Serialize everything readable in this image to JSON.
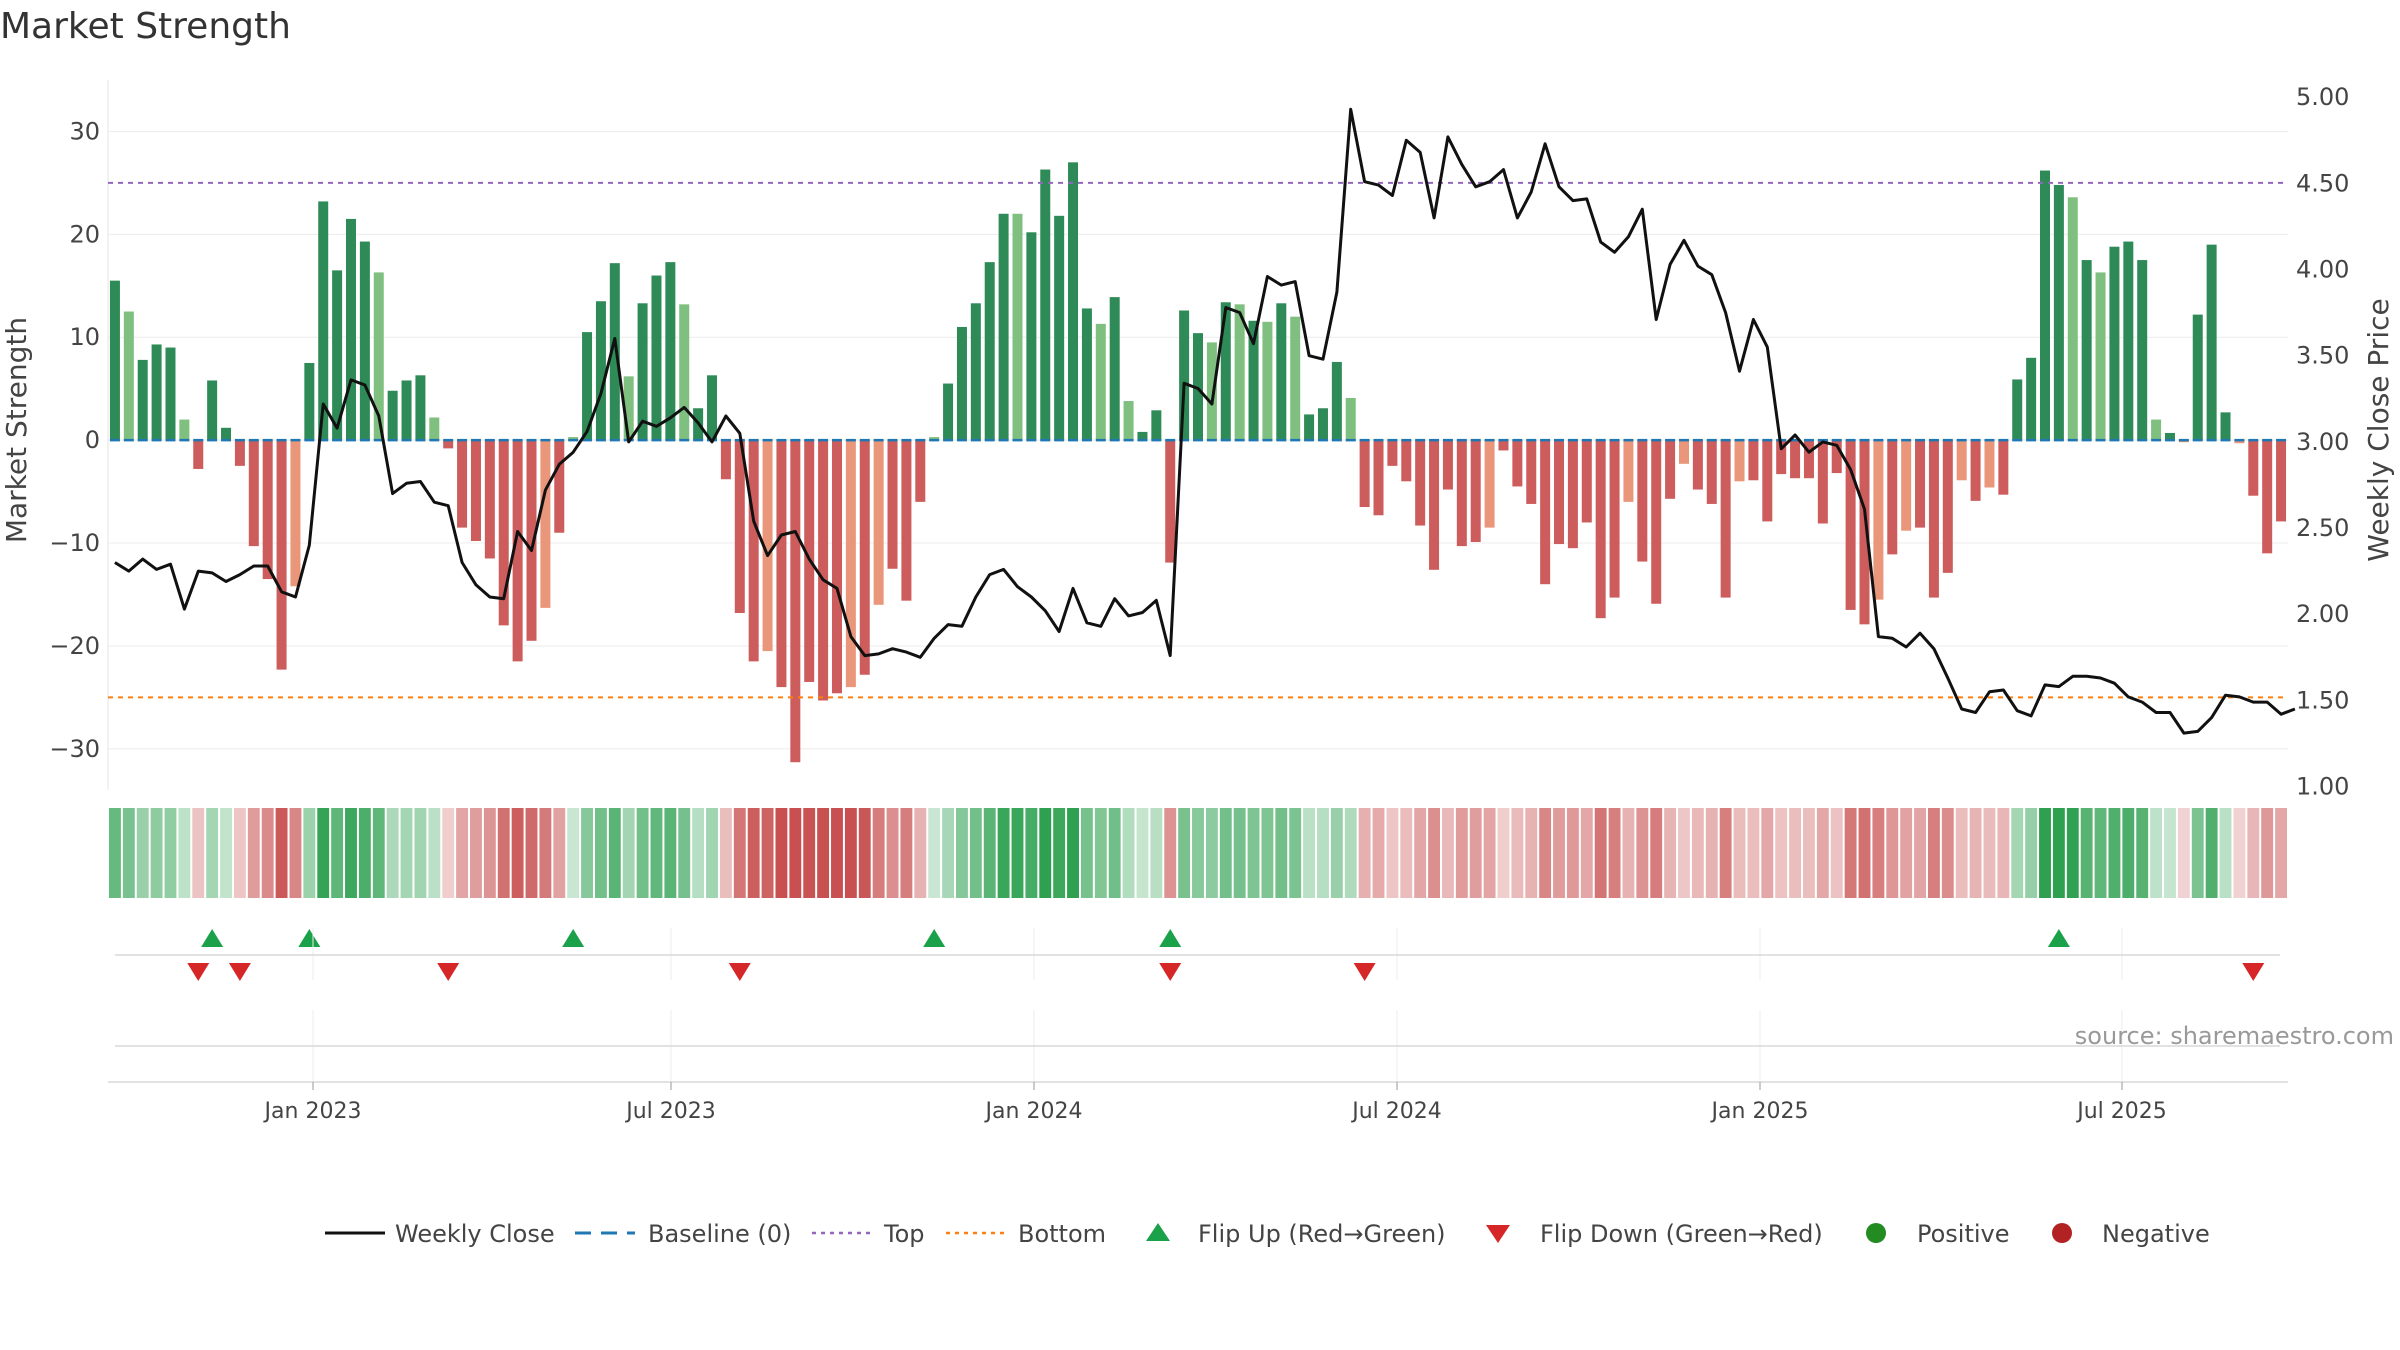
{
  "chart_data": {
    "type": "bar+line",
    "title": "Market Strength",
    "left_axis": {
      "label": "Market Strength",
      "ticks": [
        30,
        20,
        10,
        0,
        -10,
        -20,
        -30
      ],
      "range": [
        -34,
        35
      ]
    },
    "right_axis": {
      "label": "Weekly Close Price",
      "ticks": [
        "5.00",
        "4.50",
        "4.00",
        "3.50",
        "3.00",
        "2.50",
        "2.00",
        "1.50",
        "1.00"
      ],
      "range": [
        0.98,
        5.1
      ]
    },
    "x_ticks": [
      "Jan 2023",
      "Jul 2023",
      "Jan 2024",
      "Jul 2024",
      "Jan 2025",
      "Jul 2025"
    ],
    "top_threshold": 25,
    "bottom_threshold": -25,
    "strength": [
      15.5,
      12.5,
      7.8,
      9.3,
      9.0,
      2.0,
      -2.8,
      5.8,
      1.2,
      -2.5,
      -10.3,
      -13.5,
      -22.3,
      -14.2,
      7.5,
      23.2,
      16.5,
      21.5,
      19.3,
      16.3,
      4.8,
      5.8,
      6.3,
      2.2,
      -0.8,
      -8.5,
      -9.8,
      -11.5,
      -18.0,
      -21.5,
      -19.5,
      -16.3,
      -9.0,
      0.3,
      10.5,
      13.5,
      17.2,
      6.2,
      13.3,
      16.0,
      17.3,
      13.2,
      3.1,
      6.3,
      -3.8,
      -16.8,
      -21.5,
      -20.5,
      -24.0,
      -31.3,
      -23.5,
      -25.3,
      -24.6,
      -24.0,
      -22.8,
      -16.0,
      -12.5,
      -15.6,
      -6.0,
      0.3,
      5.5,
      11.0,
      13.3,
      17.3,
      22.0,
      22.0,
      20.2,
      26.3,
      21.8,
      27.0,
      12.8,
      11.3,
      13.9,
      3.8,
      0.8,
      2.9,
      -11.9,
      12.6,
      10.4,
      9.5,
      13.4,
      13.2,
      11.6,
      11.5,
      13.3,
      12.0,
      2.5,
      3.1,
      7.6,
      4.1,
      -6.5,
      -7.3,
      -2.5,
      -4.0,
      -8.3,
      -12.6,
      -4.8,
      -10.3,
      -9.9,
      -8.5,
      -1.0,
      -4.5,
      -6.2,
      -14.0,
      -10.1,
      -10.5,
      -8.0,
      -17.3,
      -15.3,
      -6.0,
      -11.8,
      -15.9,
      -5.7,
      -2.3,
      -4.8,
      -6.2,
      -15.3,
      -4.0,
      -3.9,
      -7.9,
      -3.3,
      -3.7,
      -3.7,
      -8.1,
      -3.2,
      -16.5,
      -17.9,
      -15.5,
      -11.1,
      -8.8,
      -8.5,
      -15.3,
      -12.9,
      -3.9,
      -5.9,
      -4.6,
      -5.3,
      5.9,
      8.0,
      26.2,
      24.8,
      23.6,
      17.5,
      16.3,
      18.8,
      19.3,
      17.5,
      2.0,
      0.7,
      -0.2,
      12.2,
      19.0,
      2.7,
      -0.3,
      -5.4,
      -11.0,
      -7.9
    ],
    "weekly_close": [
      2.3,
      2.25,
      2.32,
      2.26,
      2.29,
      2.03,
      2.25,
      2.24,
      2.19,
      2.23,
      2.28,
      2.28,
      2.13,
      2.1,
      2.4,
      3.22,
      3.08,
      3.36,
      3.33,
      3.15,
      2.7,
      2.76,
      2.77,
      2.65,
      2.63,
      2.3,
      2.17,
      2.1,
      2.09,
      2.48,
      2.37,
      2.72,
      2.87,
      2.94,
      3.06,
      3.28,
      3.6,
      3.0,
      3.12,
      3.09,
      3.14,
      3.2,
      3.11,
      3.0,
      3.15,
      3.05,
      2.54,
      2.34,
      2.46,
      2.48,
      2.32,
      2.2,
      2.15,
      1.87,
      1.76,
      1.77,
      1.8,
      1.78,
      1.75,
      1.86,
      1.94,
      1.93,
      2.1,
      2.23,
      2.26,
      2.16,
      2.1,
      2.02,
      1.9,
      2.15,
      1.95,
      1.93,
      2.09,
      1.99,
      2.01,
      2.08,
      1.76,
      3.34,
      3.31,
      3.22,
      3.78,
      3.75,
      3.57,
      3.96,
      3.91,
      3.93,
      3.5,
      3.48,
      3.87,
      4.93,
      4.51,
      4.49,
      4.43,
      4.75,
      4.68,
      4.3,
      4.77,
      4.61,
      4.48,
      4.51,
      4.58,
      4.3,
      4.45,
      4.73,
      4.48,
      4.4,
      4.41,
      4.16,
      4.1,
      4.19,
      4.35,
      3.71,
      4.03,
      4.17,
      4.02,
      3.97,
      3.75,
      3.41,
      3.71,
      3.55,
      2.96,
      3.04,
      2.94,
      3.0,
      2.98,
      2.84,
      2.61,
      1.87,
      1.86,
      1.81,
      1.89,
      1.8,
      1.63,
      1.45,
      1.43,
      1.55,
      1.56,
      1.44,
      1.41,
      1.59,
      1.58,
      1.64,
      1.64,
      1.63,
      1.6,
      1.52,
      1.49,
      1.43,
      1.43,
      1.31,
      1.32,
      1.4,
      1.53,
      1.52,
      1.49,
      1.49,
      1.42,
      1.45
    ],
    "flip_up": [
      7,
      14,
      33,
      59,
      76,
      140
    ],
    "flip_down": [
      6,
      9,
      24,
      45,
      76,
      90,
      154
    ],
    "legend": [
      "Weekly Close",
      "Baseline (0)",
      "Top",
      "Bottom",
      "Flip Up (Red→Green)",
      "Flip Down (Green→Red)",
      "Positive",
      "Negative"
    ]
  },
  "colors": {
    "strong_green": "#2e8b57",
    "light_green": "#7fbf7f",
    "strong_red": "#cd5c5c",
    "light_red": "#e9967a",
    "line": "#111111",
    "baseline": "#1f77b4",
    "top": "#9467bd",
    "bottom": "#ff7f0e",
    "flip_up": "#1aa14a",
    "flip_down": "#d62728",
    "positive": "#228b22",
    "negative": "#b22222"
  },
  "source_label": "source: sharemaestro.com"
}
